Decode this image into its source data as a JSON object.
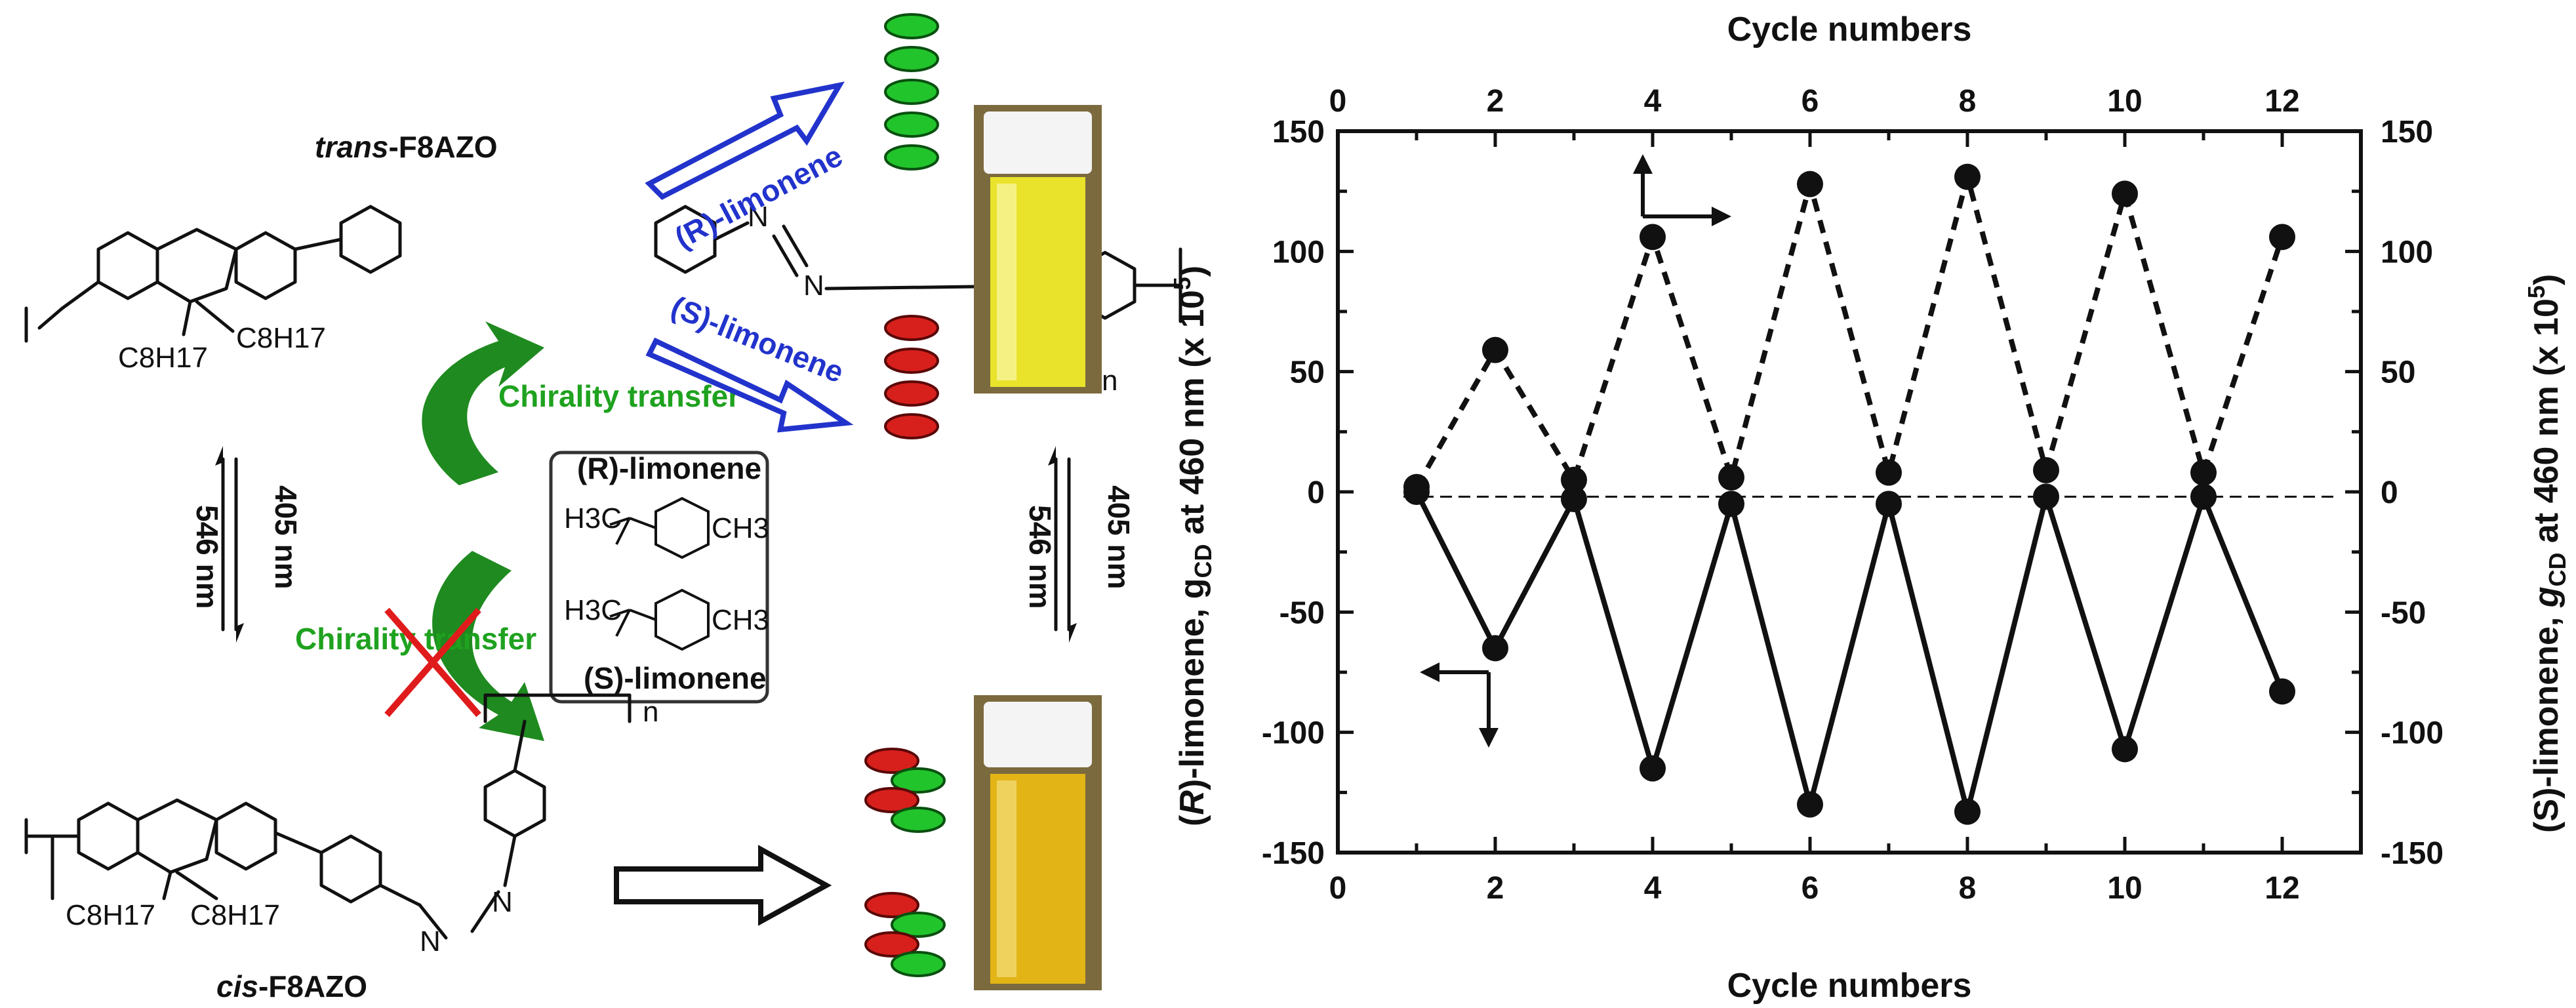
{
  "scheme": {
    "trans_label_italic": "trans",
    "trans_label_rest": "-F8AZO",
    "cis_label_italic": "cis",
    "cis_label_rest": "-F8AZO",
    "alkyl_chain": "C8H17",
    "n_subscript": "n",
    "azo_atom": "N",
    "r_limonene_arrow": "(R)-limonene",
    "s_limonene_arrow": "(S)-limonene",
    "chirality_transfer": "Chirality transfer",
    "light_405": "405 nm",
    "light_546": "546 nm",
    "box_r_limonene": "(R)-limonene",
    "box_s_limonene": "(S)-limonene",
    "methyl_h3c": "H3C",
    "methyl_ch3": "CH3"
  },
  "colors": {
    "helix_green": "#21c42b",
    "helix_red": "#d7201c",
    "arrow_blue": "#2233cc",
    "curl_green": "#1f8a1f",
    "vial_yellow": "#e9e32c",
    "vial_orange": "#e2b416",
    "cross_red": "#e01b1b"
  },
  "chart_data": {
    "type": "line",
    "title": "",
    "x": [
      1,
      2,
      3,
      4,
      5,
      6,
      7,
      8,
      9,
      10,
      11,
      12
    ],
    "xlabel_bottom": "Cycle numbers",
    "xlabel_top": "Cycle numbers",
    "xlim": [
      0,
      13
    ],
    "xticks": [
      0,
      2,
      4,
      6,
      8,
      10,
      12
    ],
    "ylim": [
      -150,
      150
    ],
    "yticks": [
      -150,
      -100,
      -50,
      0,
      50,
      100,
      150
    ],
    "ylabel_left": "(R)-limonene, gCD at 460 nm (x 10^5)",
    "ylabel_right": "(S)-limonene, gCD at 460 nm (x 10^5)",
    "ylabel_left_parts": {
      "italic": "R",
      "pre": "(",
      "mid": ")-limonene, g",
      "sub": "CD",
      "post": " at 460 nm (x 10",
      "sup": "5",
      "end": ")"
    },
    "ylabel_right_parts": {
      "pre": "(S)-limonene, ",
      "g": "g",
      "sub": "CD",
      "post": " at 460 nm (x 10",
      "sup": "5",
      "end": ")"
    },
    "series": [
      {
        "name": "(R)-limonene",
        "style": "solid",
        "axis": "left",
        "values": [
          0,
          -65,
          -3,
          -115,
          -5,
          -130,
          -5,
          -133,
          -2,
          -107,
          -2,
          -83
        ]
      },
      {
        "name": "(S)-limonene",
        "style": "dashed",
        "axis": "right",
        "values": [
          2,
          59,
          5,
          106,
          6,
          128,
          8,
          131,
          9,
          124,
          8,
          106
        ]
      }
    ],
    "reference_line": {
      "y": -2,
      "style": "dashed"
    }
  }
}
